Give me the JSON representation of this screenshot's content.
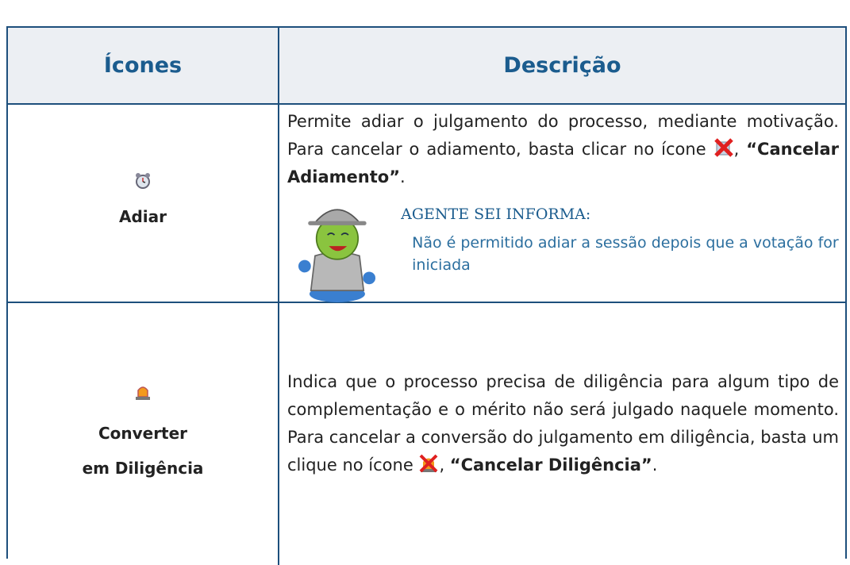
{
  "header": {
    "columns": [
      "Ícones",
      "Descrição"
    ]
  },
  "rows": [
    {
      "label": [
        "Adiar"
      ],
      "description_before": "Permite adiar o julgamento do processo, mediante motivação. Para cancelar o adiamento, basta clicar no ícone",
      "description_emphasis": "“Cancelar Adiamento”",
      "description_after": ".",
      "note": {
        "title": "AGENTE SEI INFORMA:",
        "text": "Não é permitido adiar a sessão depois que a votação for iniciada"
      }
    },
    {
      "label": [
        "Converter",
        "em Diligência"
      ],
      "description_before": "Indica que o processo precisa de diligência para algum tipo de complementação e o mérito não será julgado naquele momento. Para cancelar a conversão do julgamento em diligência, basta um clique no ícone",
      "description_emphasis": "“Cancelar Diligência”",
      "description_after": "."
    }
  ]
}
